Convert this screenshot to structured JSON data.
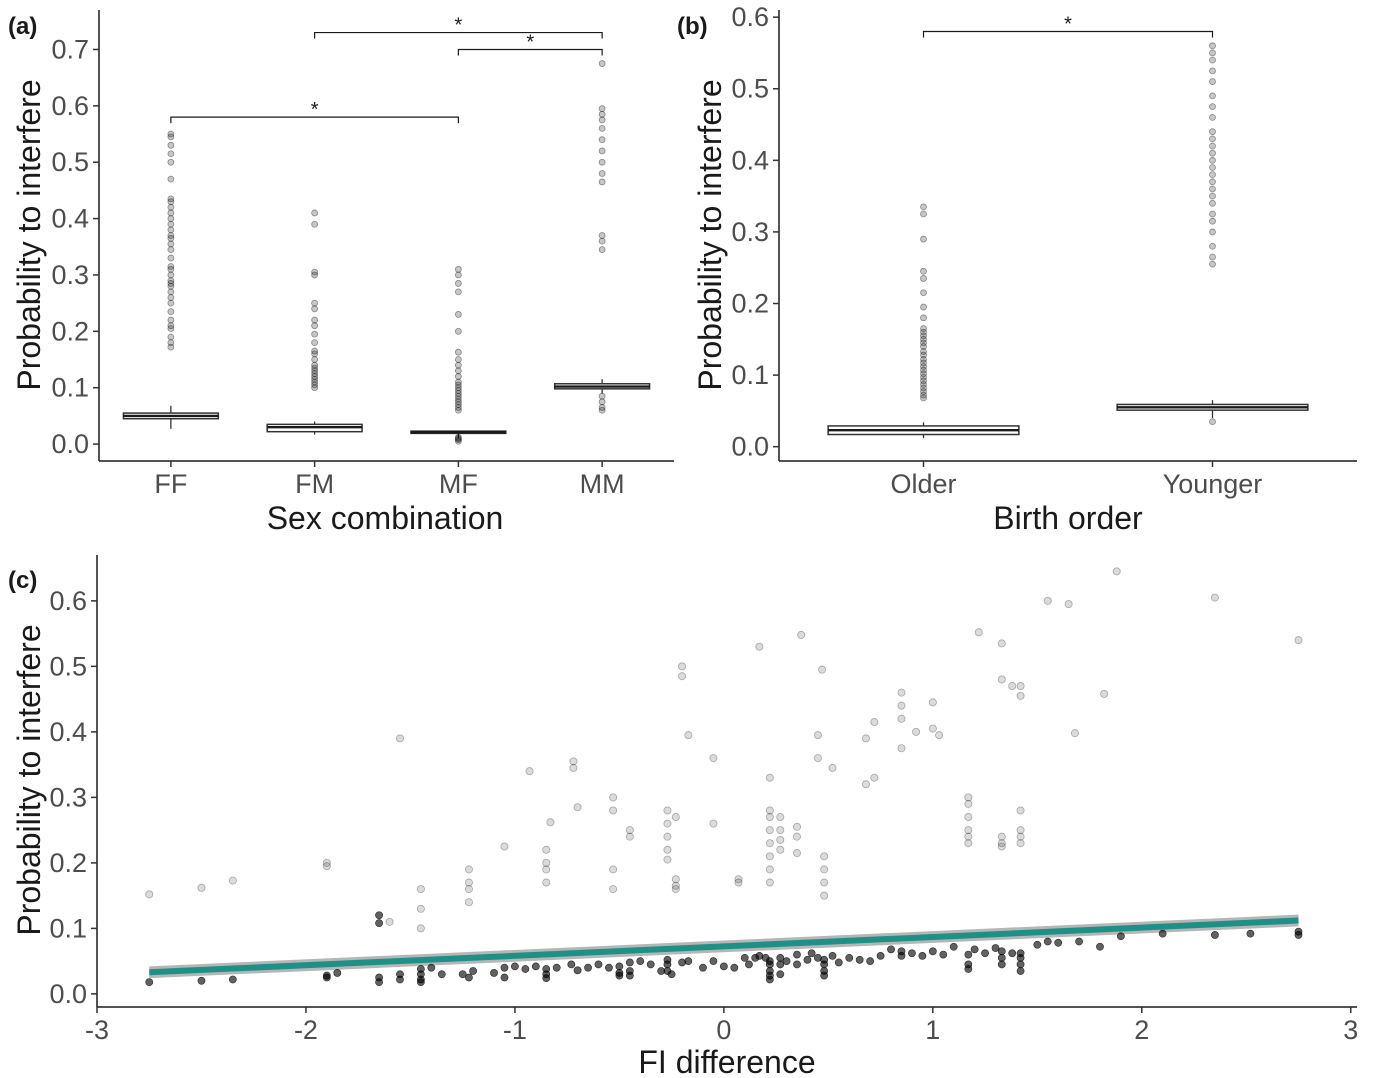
{
  "chart_data": [
    {
      "panel": "(a)",
      "type": "box",
      "xlabel": "Sex combination",
      "ylabel": "Probability to interfere",
      "ylim": [
        -0.03,
        0.77
      ],
      "yticks": [
        "0.0",
        "0.1",
        "0.2",
        "0.3",
        "0.4",
        "0.5",
        "0.6",
        "0.7"
      ],
      "categories": [
        "FF",
        "FM",
        "MF",
        "MM"
      ],
      "grid": false,
      "boxes": [
        {
          "category": "FF",
          "q1": 0.045,
          "median": 0.05,
          "q3": 0.055,
          "whisker_low": 0.027,
          "whisker_high": 0.068,
          "outliers": [
            0.172,
            0.18,
            0.19,
            0.205,
            0.21,
            0.22,
            0.235,
            0.25,
            0.26,
            0.27,
            0.28,
            0.285,
            0.29,
            0.3,
            0.31,
            0.315,
            0.33,
            0.345,
            0.355,
            0.365,
            0.37,
            0.38,
            0.39,
            0.4,
            0.41,
            0.42,
            0.43,
            0.435,
            0.47,
            0.5,
            0.515,
            0.53,
            0.545,
            0.55
          ]
        },
        {
          "category": "FM",
          "q1": 0.022,
          "median": 0.03,
          "q3": 0.035,
          "whisker_low": 0.017,
          "whisker_high": 0.04,
          "outliers": [
            0.1,
            0.105,
            0.11,
            0.115,
            0.12,
            0.125,
            0.13,
            0.135,
            0.14,
            0.15,
            0.16,
            0.165,
            0.18,
            0.195,
            0.21,
            0.22,
            0.24,
            0.25,
            0.3,
            0.305,
            0.39,
            0.41
          ]
        },
        {
          "category": "MF",
          "q1": 0.019,
          "median": 0.021,
          "q3": 0.023,
          "whisker_low": 0.01,
          "whisker_high": 0.024,
          "outliers": [
            0.005,
            0.008,
            0.01,
            0.012,
            0.06,
            0.065,
            0.07,
            0.075,
            0.08,
            0.085,
            0.09,
            0.095,
            0.1,
            0.105,
            0.11,
            0.12,
            0.13,
            0.14,
            0.15,
            0.163,
            0.2,
            0.23,
            0.27,
            0.285,
            0.3,
            0.31
          ]
        },
        {
          "category": "MM",
          "q1": 0.098,
          "median": 0.102,
          "q3": 0.107,
          "whisker_low": 0.09,
          "whisker_high": 0.115,
          "outliers": [
            0.06,
            0.065,
            0.075,
            0.085,
            0.345,
            0.36,
            0.37,
            0.465,
            0.48,
            0.5,
            0.52,
            0.54,
            0.56,
            0.575,
            0.585,
            0.595,
            0.675
          ]
        }
      ],
      "significance": [
        {
          "from": "FF",
          "to": "MF",
          "y": 0.58,
          "label": "*"
        },
        {
          "from": "FM",
          "to": "MM",
          "y": 0.73,
          "label": "*"
        },
        {
          "from": "MF",
          "to": "MM",
          "y": 0.7,
          "label": "*"
        }
      ]
    },
    {
      "panel": "(b)",
      "type": "box",
      "xlabel": "Birth order",
      "ylabel": "Probability to interfere",
      "ylim": [
        -0.02,
        0.61
      ],
      "yticks": [
        "0.0",
        "0.1",
        "0.2",
        "0.3",
        "0.4",
        "0.5",
        "0.6"
      ],
      "categories": [
        "Older",
        "Younger"
      ],
      "grid": false,
      "boxes": [
        {
          "category": "Older",
          "q1": 0.017,
          "median": 0.023,
          "q3": 0.029,
          "whisker_low": 0.012,
          "whisker_high": 0.034,
          "outliers": [
            0.068,
            0.072,
            0.077,
            0.082,
            0.087,
            0.092,
            0.097,
            0.102,
            0.107,
            0.112,
            0.117,
            0.122,
            0.128,
            0.133,
            0.14,
            0.145,
            0.15,
            0.155,
            0.16,
            0.165,
            0.18,
            0.195,
            0.215,
            0.235,
            0.245,
            0.29,
            0.325,
            0.335
          ]
        },
        {
          "category": "Younger",
          "q1": 0.051,
          "median": 0.055,
          "q3": 0.059,
          "whisker_low": 0.04,
          "whisker_high": 0.065,
          "outliers": [
            0.035,
            0.255,
            0.265,
            0.28,
            0.3,
            0.315,
            0.325,
            0.34,
            0.35,
            0.36,
            0.37,
            0.38,
            0.39,
            0.4,
            0.41,
            0.42,
            0.43,
            0.44,
            0.46,
            0.475,
            0.49,
            0.51,
            0.525,
            0.54,
            0.55,
            0.56
          ]
        }
      ],
      "significance": [
        {
          "from": "Older",
          "to": "Younger",
          "y": 0.58,
          "label": "*"
        }
      ]
    },
    {
      "panel": "(c)",
      "type": "scatter",
      "xlabel": "FI difference",
      "ylabel": "Probability to interfere",
      "xlim": [
        -3,
        3.03
      ],
      "ylim": [
        -0.02,
        0.67
      ],
      "xticks": [
        "-3",
        "-2",
        "-1",
        "0",
        "1",
        "2",
        "3"
      ],
      "yticks": [
        "0.0",
        "0.1",
        "0.2",
        "0.3",
        "0.4",
        "0.5",
        "0.6"
      ],
      "grid": false,
      "trend": {
        "color": "#1f9088",
        "band_color": "#a9a9a9",
        "x": [
          -2.75,
          2.75
        ],
        "y": [
          0.033,
          0.112
        ],
        "se": 0.009
      },
      "points_light": [
        [
          -2.75,
          0.152
        ],
        [
          -2.5,
          0.162
        ],
        [
          -2.35,
          0.173
        ],
        [
          -1.9,
          0.195
        ],
        [
          -1.9,
          0.2
        ],
        [
          -1.6,
          0.11
        ],
        [
          -1.55,
          0.39
        ],
        [
          -1.45,
          0.16
        ],
        [
          -1.45,
          0.13
        ],
        [
          -1.45,
          0.1
        ],
        [
          -1.22,
          0.19
        ],
        [
          -1.22,
          0.17
        ],
        [
          -1.22,
          0.16
        ],
        [
          -1.22,
          0.14
        ],
        [
          -1.05,
          0.225
        ],
        [
          -0.93,
          0.34
        ],
        [
          -0.85,
          0.22
        ],
        [
          -0.85,
          0.2
        ],
        [
          -0.85,
          0.19
        ],
        [
          -0.85,
          0.17
        ],
        [
          -0.83,
          0.262
        ],
        [
          -0.72,
          0.355
        ],
        [
          -0.72,
          0.345
        ],
        [
          -0.7,
          0.285
        ],
        [
          -0.53,
          0.3
        ],
        [
          -0.53,
          0.28
        ],
        [
          -0.53,
          0.19
        ],
        [
          -0.53,
          0.16
        ],
        [
          -0.45,
          0.25
        ],
        [
          -0.45,
          0.24
        ],
        [
          -0.27,
          0.28
        ],
        [
          -0.27,
          0.26
        ],
        [
          -0.27,
          0.24
        ],
        [
          -0.27,
          0.22
        ],
        [
          -0.27,
          0.205
        ],
        [
          -0.23,
          0.27
        ],
        [
          -0.23,
          0.175
        ],
        [
          -0.23,
          0.165
        ],
        [
          -0.23,
          0.16
        ],
        [
          -0.2,
          0.5
        ],
        [
          -0.2,
          0.485
        ],
        [
          -0.17,
          0.395
        ],
        [
          -0.05,
          0.36
        ],
        [
          -0.05,
          0.26
        ],
        [
          0.07,
          0.17
        ],
        [
          0.07,
          0.175
        ],
        [
          0.17,
          0.53
        ],
        [
          0.22,
          0.33
        ],
        [
          0.22,
          0.28
        ],
        [
          0.22,
          0.27
        ],
        [
          0.22,
          0.25
        ],
        [
          0.22,
          0.23
        ],
        [
          0.22,
          0.21
        ],
        [
          0.22,
          0.19
        ],
        [
          0.22,
          0.17
        ],
        [
          0.27,
          0.27
        ],
        [
          0.27,
          0.25
        ],
        [
          0.27,
          0.235
        ],
        [
          0.27,
          0.22
        ],
        [
          0.35,
          0.255
        ],
        [
          0.35,
          0.24
        ],
        [
          0.35,
          0.215
        ],
        [
          0.37,
          0.548
        ],
        [
          0.45,
          0.395
        ],
        [
          0.45,
          0.36
        ],
        [
          0.47,
          0.495
        ],
        [
          0.48,
          0.21
        ],
        [
          0.48,
          0.19
        ],
        [
          0.48,
          0.17
        ],
        [
          0.48,
          0.15
        ],
        [
          0.52,
          0.345
        ],
        [
          0.68,
          0.39
        ],
        [
          0.68,
          0.32
        ],
        [
          0.72,
          0.415
        ],
        [
          0.72,
          0.33
        ],
        [
          0.85,
          0.46
        ],
        [
          0.85,
          0.44
        ],
        [
          0.85,
          0.42
        ],
        [
          0.85,
          0.375
        ],
        [
          0.92,
          0.4
        ],
        [
          1.0,
          0.445
        ],
        [
          1.0,
          0.405
        ],
        [
          1.03,
          0.395
        ],
        [
          1.17,
          0.3
        ],
        [
          1.17,
          0.29
        ],
        [
          1.17,
          0.27
        ],
        [
          1.17,
          0.25
        ],
        [
          1.17,
          0.24
        ],
        [
          1.17,
          0.23
        ],
        [
          1.22,
          0.552
        ],
        [
          1.33,
          0.535
        ],
        [
          1.33,
          0.48
        ],
        [
          1.33,
          0.24
        ],
        [
          1.33,
          0.23
        ],
        [
          1.33,
          0.225
        ],
        [
          1.38,
          0.47
        ],
        [
          1.42,
          0.47
        ],
        [
          1.42,
          0.455
        ],
        [
          1.42,
          0.28
        ],
        [
          1.42,
          0.25
        ],
        [
          1.42,
          0.24
        ],
        [
          1.42,
          0.23
        ],
        [
          1.55,
          0.6
        ],
        [
          1.65,
          0.595
        ],
        [
          1.68,
          0.398
        ],
        [
          1.82,
          0.458
        ],
        [
          1.88,
          0.645
        ],
        [
          2.35,
          0.605
        ],
        [
          2.75,
          0.54
        ]
      ],
      "points_dark": [
        [
          -2.75,
          0.018
        ],
        [
          -2.5,
          0.02
        ],
        [
          -2.35,
          0.022
        ],
        [
          -1.9,
          0.025
        ],
        [
          -1.9,
          0.028
        ],
        [
          -1.85,
          0.032
        ],
        [
          -1.65,
          0.12
        ],
        [
          -1.65,
          0.108
        ],
        [
          -1.65,
          0.025
        ],
        [
          -1.65,
          0.018
        ],
        [
          -1.55,
          0.03
        ],
        [
          -1.55,
          0.022
        ],
        [
          -1.45,
          0.038
        ],
        [
          -1.45,
          0.03
        ],
        [
          -1.45,
          0.022
        ],
        [
          -1.45,
          0.018
        ],
        [
          -1.4,
          0.04
        ],
        [
          -1.35,
          0.03
        ],
        [
          -1.25,
          0.03
        ],
        [
          -1.22,
          0.025
        ],
        [
          -1.2,
          0.035
        ],
        [
          -1.1,
          0.032
        ],
        [
          -1.05,
          0.04
        ],
        [
          -1.05,
          0.025
        ],
        [
          -1.0,
          0.042
        ],
        [
          -0.95,
          0.038
        ],
        [
          -0.9,
          0.042
        ],
        [
          -0.85,
          0.038
        ],
        [
          -0.85,
          0.03
        ],
        [
          -0.85,
          0.024
        ],
        [
          -0.8,
          0.04
        ],
        [
          -0.73,
          0.045
        ],
        [
          -0.7,
          0.036
        ],
        [
          -0.65,
          0.04
        ],
        [
          -0.6,
          0.045
        ],
        [
          -0.55,
          0.04
        ],
        [
          -0.5,
          0.042
        ],
        [
          -0.5,
          0.032
        ],
        [
          -0.5,
          0.028
        ],
        [
          -0.45,
          0.048
        ],
        [
          -0.45,
          0.035
        ],
        [
          -0.45,
          0.028
        ],
        [
          -0.4,
          0.05
        ],
        [
          -0.35,
          0.045
        ],
        [
          -0.3,
          0.035
        ],
        [
          -0.27,
          0.052
        ],
        [
          -0.27,
          0.045
        ],
        [
          -0.27,
          0.035
        ],
        [
          -0.25,
          0.03
        ],
        [
          -0.2,
          0.048
        ],
        [
          -0.17,
          0.05
        ],
        [
          -0.1,
          0.04
        ],
        [
          -0.05,
          0.05
        ],
        [
          0.0,
          0.042
        ],
        [
          0.05,
          0.04
        ],
        [
          0.1,
          0.055
        ],
        [
          0.12,
          0.045
        ],
        [
          0.15,
          0.055
        ],
        [
          0.17,
          0.058
        ],
        [
          0.2,
          0.055
        ],
        [
          0.22,
          0.05
        ],
        [
          0.22,
          0.045
        ],
        [
          0.22,
          0.035
        ],
        [
          0.22,
          0.028
        ],
        [
          0.22,
          0.022
        ],
        [
          0.27,
          0.055
        ],
        [
          0.27,
          0.045
        ],
        [
          0.27,
          0.03
        ],
        [
          0.3,
          0.05
        ],
        [
          0.35,
          0.06
        ],
        [
          0.35,
          0.045
        ],
        [
          0.4,
          0.052
        ],
        [
          0.42,
          0.062
        ],
        [
          0.45,
          0.055
        ],
        [
          0.48,
          0.052
        ],
        [
          0.48,
          0.045
        ],
        [
          0.48,
          0.035
        ],
        [
          0.48,
          0.028
        ],
        [
          0.52,
          0.058
        ],
        [
          0.55,
          0.048
        ],
        [
          0.6,
          0.055
        ],
        [
          0.65,
          0.052
        ],
        [
          0.7,
          0.05
        ],
        [
          0.75,
          0.058
        ],
        [
          0.8,
          0.068
        ],
        [
          0.85,
          0.065
        ],
        [
          0.85,
          0.058
        ],
        [
          0.9,
          0.062
        ],
        [
          0.95,
          0.058
        ],
        [
          1.0,
          0.065
        ],
        [
          1.05,
          0.06
        ],
        [
          1.1,
          0.072
        ],
        [
          1.17,
          0.06
        ],
        [
          1.17,
          0.045
        ],
        [
          1.17,
          0.038
        ],
        [
          1.2,
          0.068
        ],
        [
          1.25,
          0.062
        ],
        [
          1.3,
          0.07
        ],
        [
          1.33,
          0.065
        ],
        [
          1.33,
          0.055
        ],
        [
          1.33,
          0.045
        ],
        [
          1.38,
          0.062
        ],
        [
          1.42,
          0.062
        ],
        [
          1.42,
          0.055
        ],
        [
          1.42,
          0.045
        ],
        [
          1.42,
          0.035
        ],
        [
          1.5,
          0.075
        ],
        [
          1.55,
          0.08
        ],
        [
          1.6,
          0.078
        ],
        [
          1.7,
          0.08
        ],
        [
          1.8,
          0.072
        ],
        [
          1.9,
          0.088
        ],
        [
          2.1,
          0.092
        ],
        [
          2.35,
          0.09
        ],
        [
          2.52,
          0.092
        ],
        [
          2.75,
          0.09
        ],
        [
          2.75,
          0.095
        ]
      ]
    }
  ]
}
